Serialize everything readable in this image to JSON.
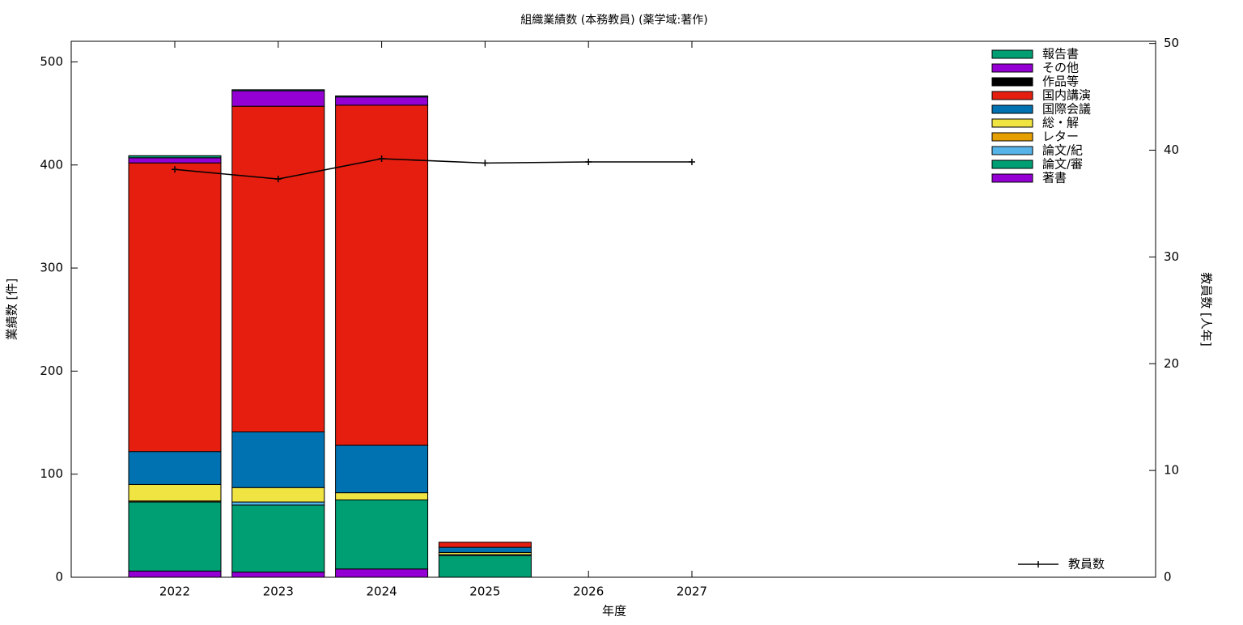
{
  "chart_data": {
    "type": "bar",
    "stacked": true,
    "title": "組織業績数 (本務教員) (薬学域:著作)",
    "x_label": "年度",
    "y_label": "業績数 [件]",
    "y2_label": "教員数 [人年]",
    "categories": [
      "2022",
      "2023",
      "2024",
      "2025",
      "2026",
      "2027"
    ],
    "ylim": [
      0,
      520
    ],
    "yticks": [
      0,
      100,
      200,
      300,
      400,
      500
    ],
    "y2lim": [
      0,
      50.2
    ],
    "y2ticks": [
      0,
      10,
      20,
      30,
      40,
      50
    ],
    "series": [
      {
        "name": "著書",
        "color": "#9400d3",
        "values": [
          6,
          5,
          8,
          0,
          0,
          0
        ]
      },
      {
        "name": "論文/審",
        "color": "#009e73",
        "values": [
          67,
          65,
          67,
          21,
          0,
          0
        ]
      },
      {
        "name": "論文/紀",
        "color": "#56b4e9",
        "values": [
          0,
          3,
          0,
          1,
          0,
          0
        ]
      },
      {
        "name": "レター",
        "color": "#e69f00",
        "values": [
          1,
          0,
          0,
          0,
          0,
          0
        ]
      },
      {
        "name": "総・解",
        "color": "#f0e442",
        "values": [
          16,
          14,
          7,
          2,
          0,
          0
        ]
      },
      {
        "name": "国際会議",
        "color": "#0072b2",
        "values": [
          32,
          54,
          46,
          5,
          0,
          0
        ]
      },
      {
        "name": "国内講演",
        "color": "#e51e10",
        "values": [
          280,
          316,
          330,
          5,
          0,
          0
        ]
      },
      {
        "name": "作品等",
        "color": "#000000",
        "values": [
          0,
          0,
          0,
          0,
          0,
          0
        ]
      },
      {
        "name": "その他",
        "color": "#9400d3",
        "values": [
          5,
          15,
          8,
          0,
          0,
          0
        ]
      },
      {
        "name": "報告書",
        "color": "#009e73",
        "values": [
          2,
          1,
          1,
          0,
          0,
          0
        ]
      },
      {
        "name": "教員数",
        "type": "line",
        "axis": "y2",
        "color": "#000000",
        "values": [
          38.2,
          37.3,
          39.2,
          38.8,
          38.9,
          38.9
        ]
      }
    ]
  }
}
